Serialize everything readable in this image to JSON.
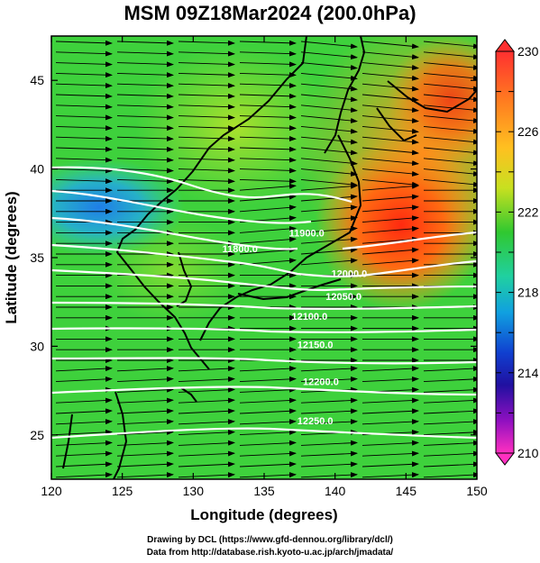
{
  "title": "MSM 09Z18Mar2024 (200.0hPa)",
  "axes": {
    "xlabel": "Longitude (degrees)",
    "ylabel": "Latitude  (degrees)",
    "x_ticks": [
      "120",
      "125",
      "130",
      "135",
      "140",
      "145",
      "150"
    ],
    "y_ticks": [
      "25",
      "30",
      "35",
      "40",
      "45"
    ],
    "xlim": [
      120,
      150
    ],
    "ylim": [
      22.5,
      47.5
    ]
  },
  "colorbar": {
    "labels": [
      "230",
      "226",
      "222",
      "218",
      "214",
      "210"
    ],
    "range": [
      210,
      230
    ]
  },
  "contours": {
    "labels": [
      {
        "text": "11900.0",
        "lon": 138.0,
        "lat": 36.2
      },
      {
        "text": "11800.0",
        "lon": 133.3,
        "lat": 35.3
      },
      {
        "text": "12000.0",
        "lon": 141.0,
        "lat": 33.9
      },
      {
        "text": "12050.0",
        "lon": 140.6,
        "lat": 32.6
      },
      {
        "text": "12100.0",
        "lon": 138.2,
        "lat": 31.5
      },
      {
        "text": "12150.0",
        "lon": 138.6,
        "lat": 29.9
      },
      {
        "text": "12200.0",
        "lon": 139.0,
        "lat": 27.8
      },
      {
        "text": "12250.0",
        "lon": 138.6,
        "lat": 25.6
      }
    ]
  },
  "credits": {
    "line1": "Drawing by DCL (https://www.gfd-dennou.org/library/dcl/)",
    "line2": "Data from http://database.rish.kyoto-u.ac.jp/arch/jmadata/"
  }
}
